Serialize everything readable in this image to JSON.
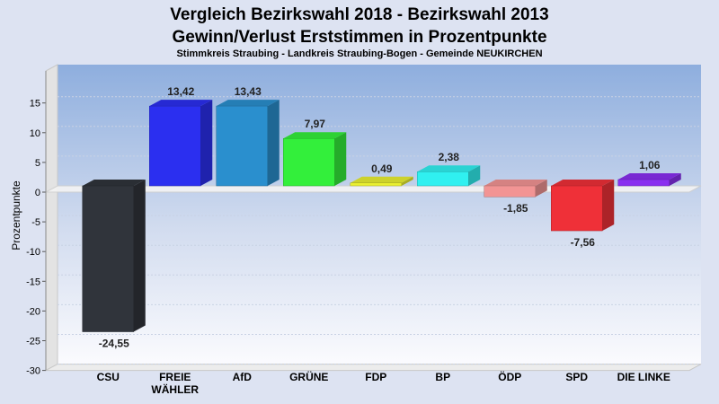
{
  "chart_data": {
    "type": "bar",
    "title": "Vergleich Bezirkswahl 2018 - Bezirkswahl 2013",
    "title2": "Gewinn/Verlust Erststimmen in Prozentpunkte",
    "subtitle": "Stimmkreis Straubing - Landkreis Straubing-Bogen - Gemeinde NEUKIRCHEN",
    "xlabel": "",
    "ylabel": "Prozentpunkte",
    "ylim": [
      -30,
      18.5
    ],
    "yticks": [
      15,
      10,
      5,
      0,
      -5,
      -10,
      -15,
      -20,
      -25,
      -30
    ],
    "grid": true,
    "categories": [
      {
        "label": "CSU",
        "value": -24.55,
        "value_label": "-24,55",
        "color": "#30343b"
      },
      {
        "label": "FREIE\nWÄHLER",
        "value": 13.42,
        "value_label": "13,42",
        "color": "#2b2ff0"
      },
      {
        "label": "AfD",
        "value": 13.43,
        "value_label": "13,43",
        "color": "#2a8fce"
      },
      {
        "label": "GRÜNE",
        "value": 7.97,
        "value_label": "7,97",
        "color": "#33ef3b"
      },
      {
        "label": "FDP",
        "value": 0.49,
        "value_label": "0,49",
        "color": "#e9ef31"
      },
      {
        "label": "BP",
        "value": 2.38,
        "value_label": "2,38",
        "color": "#30f0f0"
      },
      {
        "label": "ÖDP",
        "value": -1.85,
        "value_label": "-1,85",
        "color": "#f29494"
      },
      {
        "label": "SPD",
        "value": -7.56,
        "value_label": "-7,56",
        "color": "#ef3038"
      },
      {
        "label": "DIE LINKE",
        "value": 1.06,
        "value_label": "1,06",
        "color": "#8a2ff0"
      }
    ]
  }
}
